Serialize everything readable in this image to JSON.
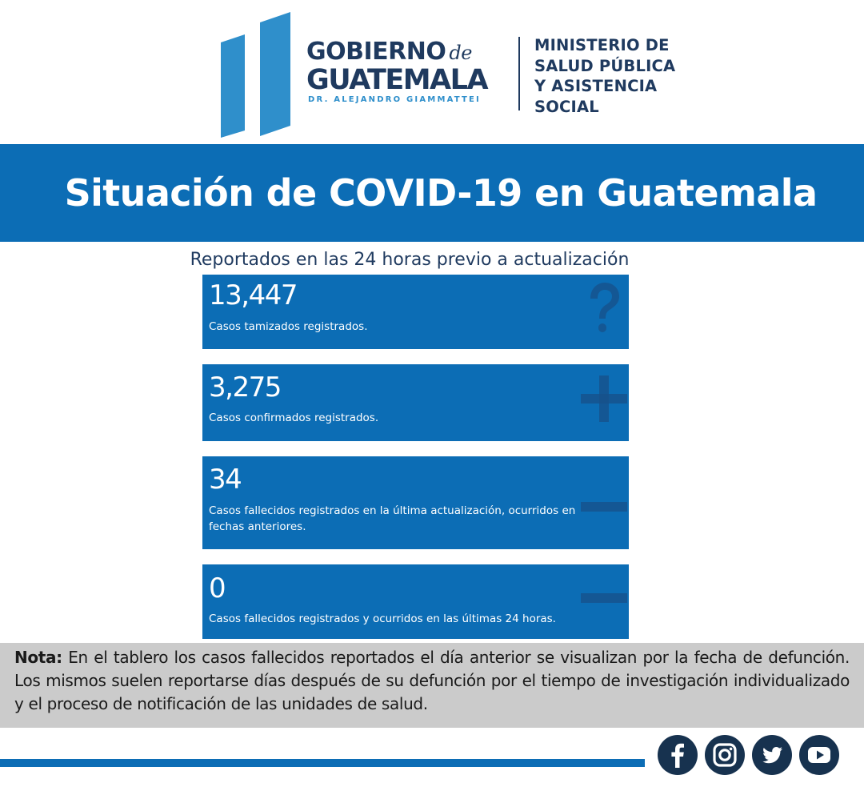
{
  "header": {
    "gobierno_line1": "GOBIERNO",
    "gobierno_de": "de",
    "gobierno_line2": "GUATEMALA",
    "gobierno_line3": "DR. ALEJANDRO GIAMMATTEI",
    "ministry_lines": [
      "MINISTERIO DE",
      "SALUD PÚBLICA",
      "Y ASISTENCIA",
      "SOCIAL"
    ]
  },
  "title": "Situación de COVID-19 en Guatemala",
  "subtitle": "Reportados en las 24 horas previo a actualización",
  "cards": [
    {
      "value": "13,447",
      "label": "Casos tamizados registrados.",
      "icon": "question-icon"
    },
    {
      "value": "3,275",
      "label": "Casos confirmados registrados.",
      "icon": "plus-icon"
    },
    {
      "value": "34",
      "label": "Casos fallecidos registrados en la última actualización, ocurridos en fechas anteriores.",
      "icon": "minus-icon"
    },
    {
      "value": "0",
      "label": "Casos fallecidos registrados y ocurridos en las últimas 24 horas.",
      "icon": "minus-icon"
    }
  ],
  "note": {
    "label": "Nota:",
    "text": "En el tablero los casos fallecidos reportados el día anterior se visualizan por la fecha de defunción. Los mismos suelen reportarse días después de su defunción por el tiempo de investigación individualizado y el proceso de notificación de las unidades de salud."
  },
  "social": [
    "facebook-icon",
    "instagram-icon",
    "twitter-icon",
    "youtube-icon"
  ],
  "colors": {
    "primary_blue": "#0c6db5",
    "navy": "#1f3a5f",
    "light_blue": "#2f8fcb",
    "icon_dark": "#17324f",
    "note_bg": "#cbcbcb"
  }
}
